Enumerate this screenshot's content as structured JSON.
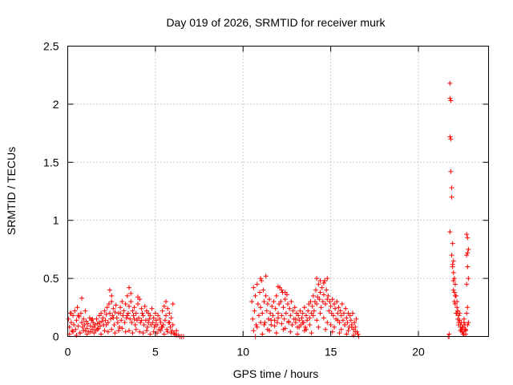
{
  "chart_data": {
    "type": "scatter",
    "title": "Day 019 of 2026, SRMTID for receiver murk",
    "xlabel": "GPS time / hours",
    "ylabel": "SRMTID / TECUs",
    "xlim": [
      0,
      24
    ],
    "ylim": [
      0,
      2.5
    ],
    "xticks": [
      0,
      5,
      10,
      15,
      20
    ],
    "xtick_labels": [
      "0",
      "5",
      "10",
      "15",
      "20"
    ],
    "yticks": [
      0,
      0.5,
      1,
      1.5,
      2,
      2.5
    ],
    "ytick_labels": [
      "0",
      "0.5",
      "1",
      "1.5",
      "2",
      "2.5"
    ],
    "grid": true,
    "marker": "+",
    "color": "#ff0000",
    "series": [
      {
        "x": [
          0.05,
          0.1,
          0.15,
          0.2,
          0.25,
          0.3,
          0.35,
          0.4,
          0.45,
          0.5,
          0.55,
          0.6,
          0.65,
          0.7,
          0.75,
          0.8,
          0.85,
          0.9,
          0.95,
          1.0,
          1.05,
          1.1,
          1.15,
          1.2,
          1.25,
          1.3,
          1.35,
          1.4,
          1.45,
          1.5,
          1.55,
          1.6,
          1.65,
          1.7,
          1.75,
          1.8,
          1.85,
          1.9,
          1.95,
          2.0,
          2.05,
          2.1,
          2.15,
          2.2,
          2.25,
          2.3,
          2.35,
          2.4,
          2.45,
          2.5,
          2.55,
          2.6,
          2.65,
          2.7,
          2.75,
          2.8,
          2.85,
          2.9,
          2.95,
          3.0,
          3.05,
          3.1,
          3.15,
          3.2,
          3.25,
          3.3,
          3.35,
          3.4,
          3.45,
          3.5,
          3.55,
          3.6,
          3.65,
          3.7,
          3.75,
          3.8,
          3.85,
          3.9,
          3.95,
          4.0,
          4.05,
          4.1,
          4.15,
          4.2,
          4.25,
          4.3,
          4.35,
          4.4,
          4.45,
          4.5,
          4.55,
          4.6,
          4.65,
          4.7,
          4.75,
          4.8,
          4.85,
          4.9,
          4.95,
          5.0,
          5.05,
          5.1,
          5.15,
          5.2,
          5.25,
          5.3,
          5.35,
          5.4,
          5.45,
          5.5,
          5.55,
          5.6,
          5.65,
          5.7,
          5.75,
          5.8,
          5.85,
          5.9,
          5.95,
          6.0,
          6.05,
          6.1,
          6.2,
          6.3,
          6.4,
          6.5,
          6.6,
          0.1,
          0.3,
          0.5,
          0.7,
          0.9,
          1.1,
          1.3,
          1.5,
          1.7,
          1.9,
          2.1,
          2.3,
          2.5,
          2.7,
          2.9,
          3.1,
          3.3,
          3.5,
          3.7,
          3.9,
          4.1,
          4.3,
          4.5,
          4.7,
          4.9,
          5.1,
          5.3,
          5.5,
          5.7,
          5.9,
          0.2,
          0.6,
          1.0,
          1.4,
          1.8,
          2.2,
          2.6,
          3.0,
          3.4,
          3.8,
          4.2,
          4.6,
          5.0,
          5.4,
          5.8,
          6.2,
          0.8,
          2.4,
          2.5,
          3.5,
          3.6,
          4.0,
          5.6,
          6.0
        ],
        "y": [
          0.15,
          0.08,
          0.2,
          0.12,
          0.05,
          0.18,
          0.1,
          0.22,
          0.06,
          0.14,
          0.25,
          0.09,
          0.17,
          0.03,
          0.2,
          0.12,
          0.08,
          0.15,
          0.1,
          0.05,
          0.13,
          0.07,
          0.11,
          0.04,
          0.16,
          0.09,
          0.14,
          0.06,
          0.12,
          0.08,
          0.1,
          0.05,
          0.15,
          0.11,
          0.07,
          0.18,
          0.09,
          0.2,
          0.13,
          0.16,
          0.1,
          0.22,
          0.14,
          0.19,
          0.25,
          0.12,
          0.28,
          0.2,
          0.15,
          0.3,
          0.18,
          0.24,
          0.1,
          0.21,
          0.27,
          0.16,
          0.12,
          0.2,
          0.08,
          0.25,
          0.14,
          0.3,
          0.18,
          0.22,
          0.12,
          0.28,
          0.16,
          0.35,
          0.2,
          0.26,
          0.15,
          0.3,
          0.12,
          0.22,
          0.18,
          0.25,
          0.1,
          0.2,
          0.14,
          0.28,
          0.16,
          0.32,
          0.12,
          0.24,
          0.2,
          0.18,
          0.1,
          0.26,
          0.14,
          0.22,
          0.08,
          0.2,
          0.15,
          0.18,
          0.1,
          0.24,
          0.12,
          0.16,
          0.08,
          0.2,
          0.14,
          0.1,
          0.18,
          0.06,
          0.15,
          0.12,
          0.08,
          0.22,
          0.1,
          0.26,
          0.14,
          0.18,
          0.06,
          0.24,
          0.12,
          0.2,
          0.08,
          0.16,
          0.05,
          0.1,
          0.03,
          0.02,
          0.01,
          0.01,
          0.0,
          0.0,
          0.0,
          0.02,
          0.04,
          0.01,
          0.03,
          0.05,
          0.02,
          0.04,
          0.03,
          0.06,
          0.02,
          0.05,
          0.04,
          0.06,
          0.03,
          0.05,
          0.07,
          0.04,
          0.05,
          0.03,
          0.06,
          0.04,
          0.03,
          0.05,
          0.02,
          0.04,
          0.03,
          0.05,
          0.02,
          0.04,
          0.03,
          0.2,
          0.18,
          0.22,
          0.15,
          0.12,
          0.1,
          0.16,
          0.2,
          0.18,
          0.15,
          0.14,
          0.12,
          0.1,
          0.08,
          0.12,
          0.05,
          0.33,
          0.4,
          0.35,
          0.42,
          0.37,
          0.34,
          0.3,
          0.28
        ]
      },
      {
        "x": [
          10.5,
          10.55,
          10.6,
          10.65,
          10.7,
          10.75,
          10.8,
          10.85,
          10.9,
          10.95,
          11.0,
          11.05,
          11.1,
          11.15,
          11.2,
          11.25,
          11.3,
          11.35,
          11.4,
          11.45,
          11.5,
          11.55,
          11.6,
          11.65,
          11.7,
          11.75,
          11.8,
          11.85,
          11.9,
          11.95,
          12.0,
          12.05,
          12.1,
          12.15,
          12.2,
          12.25,
          12.3,
          12.35,
          12.4,
          12.45,
          12.5,
          12.55,
          12.6,
          12.65,
          12.7,
          12.75,
          12.8,
          12.85,
          12.9,
          12.95,
          13.0,
          13.05,
          13.1,
          13.15,
          13.2,
          13.25,
          13.3,
          13.35,
          13.4,
          13.45,
          13.5,
          13.55,
          13.6,
          13.65,
          13.7,
          13.75,
          13.8,
          13.85,
          13.9,
          13.95,
          14.0,
          14.05,
          14.1,
          14.15,
          14.2,
          14.25,
          14.3,
          14.35,
          14.4,
          14.45,
          14.5,
          14.55,
          14.6,
          14.65,
          14.7,
          14.75,
          14.8,
          14.85,
          14.9,
          14.95,
          15.0,
          15.05,
          15.1,
          15.15,
          15.2,
          15.25,
          15.3,
          15.35,
          15.4,
          15.45,
          15.5,
          15.55,
          15.6,
          15.65,
          15.7,
          15.75,
          15.8,
          15.85,
          15.9,
          15.95,
          16.0,
          16.05,
          16.1,
          16.15,
          16.2,
          16.25,
          16.3,
          16.35,
          16.4,
          16.45,
          16.5,
          16.55,
          16.6,
          10.6,
          10.8,
          11.0,
          11.2,
          11.4,
          11.6,
          11.8,
          12.0,
          12.2,
          12.4,
          12.6,
          12.8,
          13.0,
          13.2,
          13.4,
          13.6,
          13.8,
          14.0,
          14.2,
          14.4,
          14.6,
          14.8,
          15.0,
          15.2,
          15.4,
          15.6,
          15.8,
          16.0,
          16.2,
          16.4,
          10.7,
          11.1,
          11.5,
          11.9,
          12.3,
          12.7,
          13.1,
          13.5,
          13.9,
          14.3,
          14.7,
          15.1,
          15.5,
          15.9,
          16.3,
          11.0,
          11.3,
          12.0,
          12.2,
          12.4,
          14.2,
          14.4,
          14.6,
          14.8
        ],
        "y": [
          0.3,
          0.15,
          0.42,
          0.22,
          0.35,
          0.1,
          0.45,
          0.28,
          0.18,
          0.38,
          0.25,
          0.48,
          0.2,
          0.4,
          0.3,
          0.12,
          0.35,
          0.22,
          0.28,
          0.15,
          0.32,
          0.2,
          0.1,
          0.26,
          0.18,
          0.3,
          0.14,
          0.24,
          0.35,
          0.12,
          0.2,
          0.28,
          0.42,
          0.3,
          0.18,
          0.38,
          0.25,
          0.15,
          0.32,
          0.2,
          0.36,
          0.28,
          0.12,
          0.24,
          0.18,
          0.3,
          0.1,
          0.22,
          0.15,
          0.25,
          0.12,
          0.2,
          0.08,
          0.18,
          0.14,
          0.22,
          0.1,
          0.16,
          0.2,
          0.12,
          0.25,
          0.08,
          0.18,
          0.14,
          0.22,
          0.28,
          0.16,
          0.3,
          0.2,
          0.26,
          0.35,
          0.22,
          0.3,
          0.4,
          0.28,
          0.34,
          0.45,
          0.32,
          0.38,
          0.25,
          0.42,
          0.3,
          0.36,
          0.48,
          0.28,
          0.4,
          0.32,
          0.35,
          0.22,
          0.3,
          0.26,
          0.2,
          0.32,
          0.18,
          0.28,
          0.24,
          0.15,
          0.3,
          0.2,
          0.25,
          0.12,
          0.22,
          0.18,
          0.28,
          0.14,
          0.2,
          0.1,
          0.24,
          0.16,
          0.12,
          0.2,
          0.08,
          0.18,
          0.14,
          0.1,
          0.2,
          0.06,
          0.12,
          0.08,
          0.15,
          0.04,
          0.02,
          0.0,
          0.05,
          0.08,
          0.12,
          0.1,
          0.06,
          0.14,
          0.09,
          0.16,
          0.11,
          0.07,
          0.13,
          0.1,
          0.15,
          0.08,
          0.12,
          0.06,
          0.1,
          0.18,
          0.14,
          0.2,
          0.16,
          0.12,
          0.1,
          0.08,
          0.14,
          0.06,
          0.1,
          0.05,
          0.08,
          0.04,
          0.0,
          0.02,
          0.05,
          0.03,
          0.06,
          0.04,
          0.02,
          0.05,
          0.03,
          0.08,
          0.06,
          0.04,
          0.03,
          0.02,
          0.01,
          0.5,
          0.52,
          0.43,
          0.4,
          0.38,
          0.5,
          0.48,
          0.46,
          0.5
        ]
      },
      {
        "x": [
          21.7,
          21.75,
          21.8,
          21.8,
          21.85,
          21.85,
          21.8,
          21.85,
          21.9,
          21.9,
          21.75,
          21.8,
          21.95,
          22.0,
          22.0,
          22.05,
          22.1,
          22.15,
          22.2,
          22.25,
          22.3,
          22.35,
          22.4,
          22.45,
          22.5,
          22.55,
          22.6,
          22.65,
          22.7,
          22.75,
          22.8,
          22.85,
          21.95,
          22.0,
          22.05,
          22.1,
          22.15,
          22.2,
          22.25,
          22.3,
          22.35,
          22.4,
          22.45,
          22.5,
          22.55,
          22.6,
          22.65,
          22.7,
          21.9,
          21.95,
          22.0,
          22.05,
          22.1,
          22.2,
          22.3,
          22.4,
          22.5,
          22.6,
          22.7,
          22.8,
          22.75,
          22.8,
          22.85,
          22.8,
          22.75,
          22.8,
          22.85,
          22.75
        ],
        "y": [
          0.0,
          0.0,
          2.18,
          2.05,
          2.03,
          1.7,
          1.72,
          1.42,
          1.28,
          1.2,
          0.02,
          0.9,
          0.62,
          0.55,
          0.4,
          0.3,
          0.35,
          0.2,
          0.25,
          0.15,
          0.1,
          0.2,
          0.05,
          0.12,
          0.08,
          0.02,
          0.15,
          0.1,
          0.05,
          0.2,
          0.25,
          0.12,
          0.8,
          0.65,
          0.5,
          0.45,
          0.35,
          0.3,
          0.22,
          0.18,
          0.14,
          0.1,
          0.06,
          0.04,
          0.08,
          0.12,
          0.06,
          0.02,
          0.7,
          0.6,
          0.48,
          0.38,
          0.28,
          0.2,
          0.12,
          0.08,
          0.04,
          0.02,
          0.06,
          0.1,
          0.88,
          0.85,
          0.75,
          0.72,
          0.7,
          0.6,
          0.5,
          0.45
        ]
      }
    ]
  }
}
